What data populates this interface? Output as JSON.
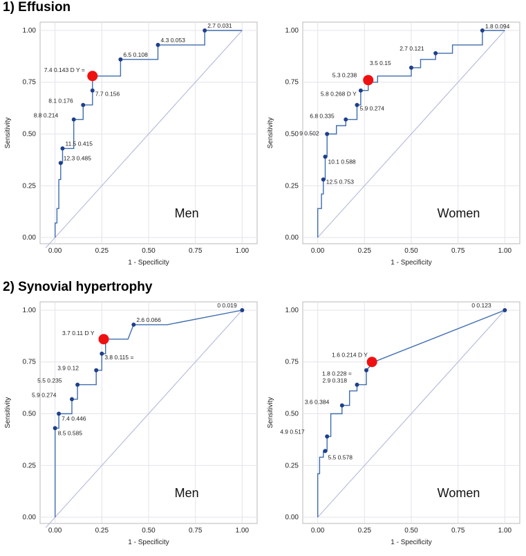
{
  "section_titles": [
    "1) Effusion",
    "2) Synovial hypertrophy"
  ],
  "chart_data": [
    {
      "type": "line",
      "section": "1) Effusion",
      "panel_label": "Men",
      "xlabel": "1 - Specificity",
      "ylabel": "Sensitivity",
      "xlim": [
        -0.08,
        1.08
      ],
      "ylim": [
        -0.03,
        1.04
      ],
      "xticks": [
        "0.00",
        "0.25",
        "0.50",
        "0.75",
        "1.00"
      ],
      "yticks": [
        "0.00",
        "0.25",
        "0.50",
        "0.75",
        "1.00"
      ],
      "reference_line": [
        [
          -0.05,
          -0.05
        ],
        [
          1.0,
          1.0
        ]
      ],
      "roc_x": [
        0,
        0,
        0.01,
        0.01,
        0.02,
        0.02,
        0.03,
        0.03,
        0.04,
        0.04,
        0.1,
        0.1,
        0.15,
        0.15,
        0.2,
        0.2,
        0.35,
        0.35,
        0.55,
        0.55,
        0.8,
        0.8,
        1.0
      ],
      "roc_y": [
        0,
        0.07,
        0.07,
        0.14,
        0.14,
        0.28,
        0.28,
        0.36,
        0.36,
        0.43,
        0.43,
        0.57,
        0.57,
        0.64,
        0.64,
        0.78,
        0.78,
        0.86,
        0.86,
        0.93,
        0.93,
        1.0,
        1.0
      ],
      "points": [
        {
          "x": 0.03,
          "y": 0.36,
          "label": "12.3 0.485"
        },
        {
          "x": 0.04,
          "y": 0.43,
          "label": "11.5 0.415"
        },
        {
          "x": 0.1,
          "y": 0.57,
          "label": "8.8 0.214"
        },
        {
          "x": 0.15,
          "y": 0.64,
          "label": "8.1 0.176"
        },
        {
          "x": 0.2,
          "y": 0.71,
          "label": "7.7 0.156"
        },
        {
          "x": 0.35,
          "y": 0.86,
          "label": "6.5 0.108"
        },
        {
          "x": 0.55,
          "y": 0.93,
          "label": "4.3 0.053"
        },
        {
          "x": 0.8,
          "y": 1.0,
          "label": "2.7 0.031"
        }
      ],
      "optimal": {
        "x": 0.2,
        "y": 0.78,
        "label": "7.4 0.143 D Y ="
      }
    },
    {
      "type": "line",
      "section": "1) Effusion",
      "panel_label": "Women",
      "xlabel": "1 - Specificity",
      "ylabel": "Sensitivity",
      "xlim": [
        -0.08,
        1.08
      ],
      "ylim": [
        -0.03,
        1.04
      ],
      "xticks": [
        "0.00",
        "0.25",
        "0.50",
        "0.75",
        "1.00"
      ],
      "yticks": [
        "0.00",
        "0.25",
        "0.50",
        "0.75",
        "1.00"
      ],
      "reference_line": [
        [
          0,
          0
        ],
        [
          1.0,
          1.0
        ]
      ],
      "roc_x": [
        0,
        0,
        0.02,
        0.02,
        0.03,
        0.03,
        0.04,
        0.04,
        0.05,
        0.05,
        0.1,
        0.1,
        0.15,
        0.15,
        0.21,
        0.21,
        0.23,
        0.23,
        0.27,
        0.27,
        0.32,
        0.32,
        0.38,
        0.38,
        0.5,
        0.5,
        0.55,
        0.55,
        0.63,
        0.63,
        0.72,
        0.72,
        0.88,
        0.88,
        1.0
      ],
      "roc_y": [
        0,
        0.14,
        0.14,
        0.21,
        0.21,
        0.28,
        0.28,
        0.39,
        0.39,
        0.5,
        0.5,
        0.54,
        0.54,
        0.57,
        0.57,
        0.64,
        0.64,
        0.71,
        0.71,
        0.75,
        0.75,
        0.78,
        0.78,
        0.78,
        0.78,
        0.82,
        0.82,
        0.86,
        0.86,
        0.89,
        0.89,
        0.93,
        0.93,
        1.0,
        1.0
      ],
      "points": [
        {
          "x": 0.03,
          "y": 0.28,
          "label": "12.5 0.753"
        },
        {
          "x": 0.04,
          "y": 0.39,
          "label": "10.1 0.588"
        },
        {
          "x": 0.05,
          "y": 0.5,
          "label": "9 0.502"
        },
        {
          "x": 0.15,
          "y": 0.57,
          "label": "6.8 0.335"
        },
        {
          "x": 0.21,
          "y": 0.64,
          "label": "5.9 0.274"
        },
        {
          "x": 0.23,
          "y": 0.71,
          "label": "5.8 0.268 D Y"
        },
        {
          "x": 0.5,
          "y": 0.82,
          "label": "3.5 0.15"
        },
        {
          "x": 0.63,
          "y": 0.89,
          "label": "2.7 0.121"
        },
        {
          "x": 0.88,
          "y": 1.0,
          "label": "1.8 0.094"
        }
      ],
      "optimal": {
        "x": 0.27,
        "y": 0.76,
        "label": "5.3 0.238"
      }
    },
    {
      "type": "line",
      "section": "2) Synovial hypertrophy",
      "panel_label": "Men",
      "xlabel": "1 - Specificity",
      "ylabel": "Sensitivity",
      "xlim": [
        -0.08,
        1.08
      ],
      "ylim": [
        -0.03,
        1.04
      ],
      "xticks": [
        "0.00",
        "0.25",
        "0.50",
        "0.75",
        "1.00"
      ],
      "yticks": [
        "0.00",
        "0.25",
        "0.50",
        "0.75",
        "1.00"
      ],
      "reference_line": [
        [
          -0.05,
          -0.05
        ],
        [
          1.0,
          1.0
        ]
      ],
      "roc_x": [
        0,
        0,
        0.02,
        0.02,
        0.07,
        0.07,
        0.09,
        0.09,
        0.12,
        0.12,
        0.22,
        0.22,
        0.25,
        0.25,
        0.27,
        0.27,
        0.39,
        0.42,
        0.6,
        1.0
      ],
      "roc_y": [
        0,
        0.43,
        0.43,
        0.5,
        0.5,
        0.5,
        0.5,
        0.57,
        0.57,
        0.64,
        0.64,
        0.71,
        0.71,
        0.79,
        0.79,
        0.86,
        0.86,
        0.93,
        0.93,
        1.0
      ],
      "points": [
        {
          "x": 0.0,
          "y": 0.43,
          "label": "8.5 0.585"
        },
        {
          "x": 0.02,
          "y": 0.5,
          "label": "7.4 0.446"
        },
        {
          "x": 0.09,
          "y": 0.57,
          "label": "5.9 0.274"
        },
        {
          "x": 0.12,
          "y": 0.64,
          "label": "5.5 0.235"
        },
        {
          "x": 0.22,
          "y": 0.71,
          "label": "3.9 0.12"
        },
        {
          "x": 0.25,
          "y": 0.79,
          "label": "3.8 0.115 ="
        },
        {
          "x": 0.42,
          "y": 0.93,
          "label": "2.6 0.066"
        },
        {
          "x": 1.0,
          "y": 1.0,
          "label": "0 0.019"
        }
      ],
      "optimal": {
        "x": 0.26,
        "y": 0.86,
        "label": "3.7 0.11 D Y"
      }
    },
    {
      "type": "line",
      "section": "2) Synovial hypertrophy",
      "panel_label": "Women",
      "xlabel": "1 - Specificity",
      "ylabel": "Sensitivity",
      "xlim": [
        -0.08,
        1.08
      ],
      "ylim": [
        -0.03,
        1.04
      ],
      "xticks": [
        "0.00",
        "0.25",
        "0.50",
        "0.75",
        "1.00"
      ],
      "yticks": [
        "0.00",
        "0.25",
        "0.50",
        "0.75",
        "1.00"
      ],
      "reference_line": [
        [
          0,
          0
        ],
        [
          1.0,
          1.0
        ]
      ],
      "roc_x": [
        0,
        0,
        0.01,
        0.01,
        0.03,
        0.03,
        0.05,
        0.05,
        0.07,
        0.07,
        0.13,
        0.13,
        0.17,
        0.17,
        0.21,
        0.21,
        0.26,
        0.26,
        0.3,
        1.0
      ],
      "roc_y": [
        0,
        0.21,
        0.21,
        0.29,
        0.29,
        0.32,
        0.32,
        0.39,
        0.39,
        0.5,
        0.5,
        0.54,
        0.54,
        0.61,
        0.61,
        0.64,
        0.64,
        0.71,
        0.75,
        1.0
      ],
      "points": [
        {
          "x": 0.04,
          "y": 0.32,
          "label": "5.5 0.578"
        },
        {
          "x": 0.05,
          "y": 0.39,
          "label": "4.9 0.517"
        },
        {
          "x": 0.13,
          "y": 0.54,
          "label": "3.6 0.384"
        },
        {
          "x": 0.21,
          "y": 0.64,
          "label": "2.9 0.318"
        },
        {
          "x": 0.26,
          "y": 0.71,
          "label": "1.8 0.228 ="
        },
        {
          "x": 1.0,
          "y": 1.0,
          "label": "0 0.123"
        }
      ],
      "optimal": {
        "x": 0.29,
        "y": 0.75,
        "label": "1.6 0.214 D Y"
      }
    }
  ]
}
